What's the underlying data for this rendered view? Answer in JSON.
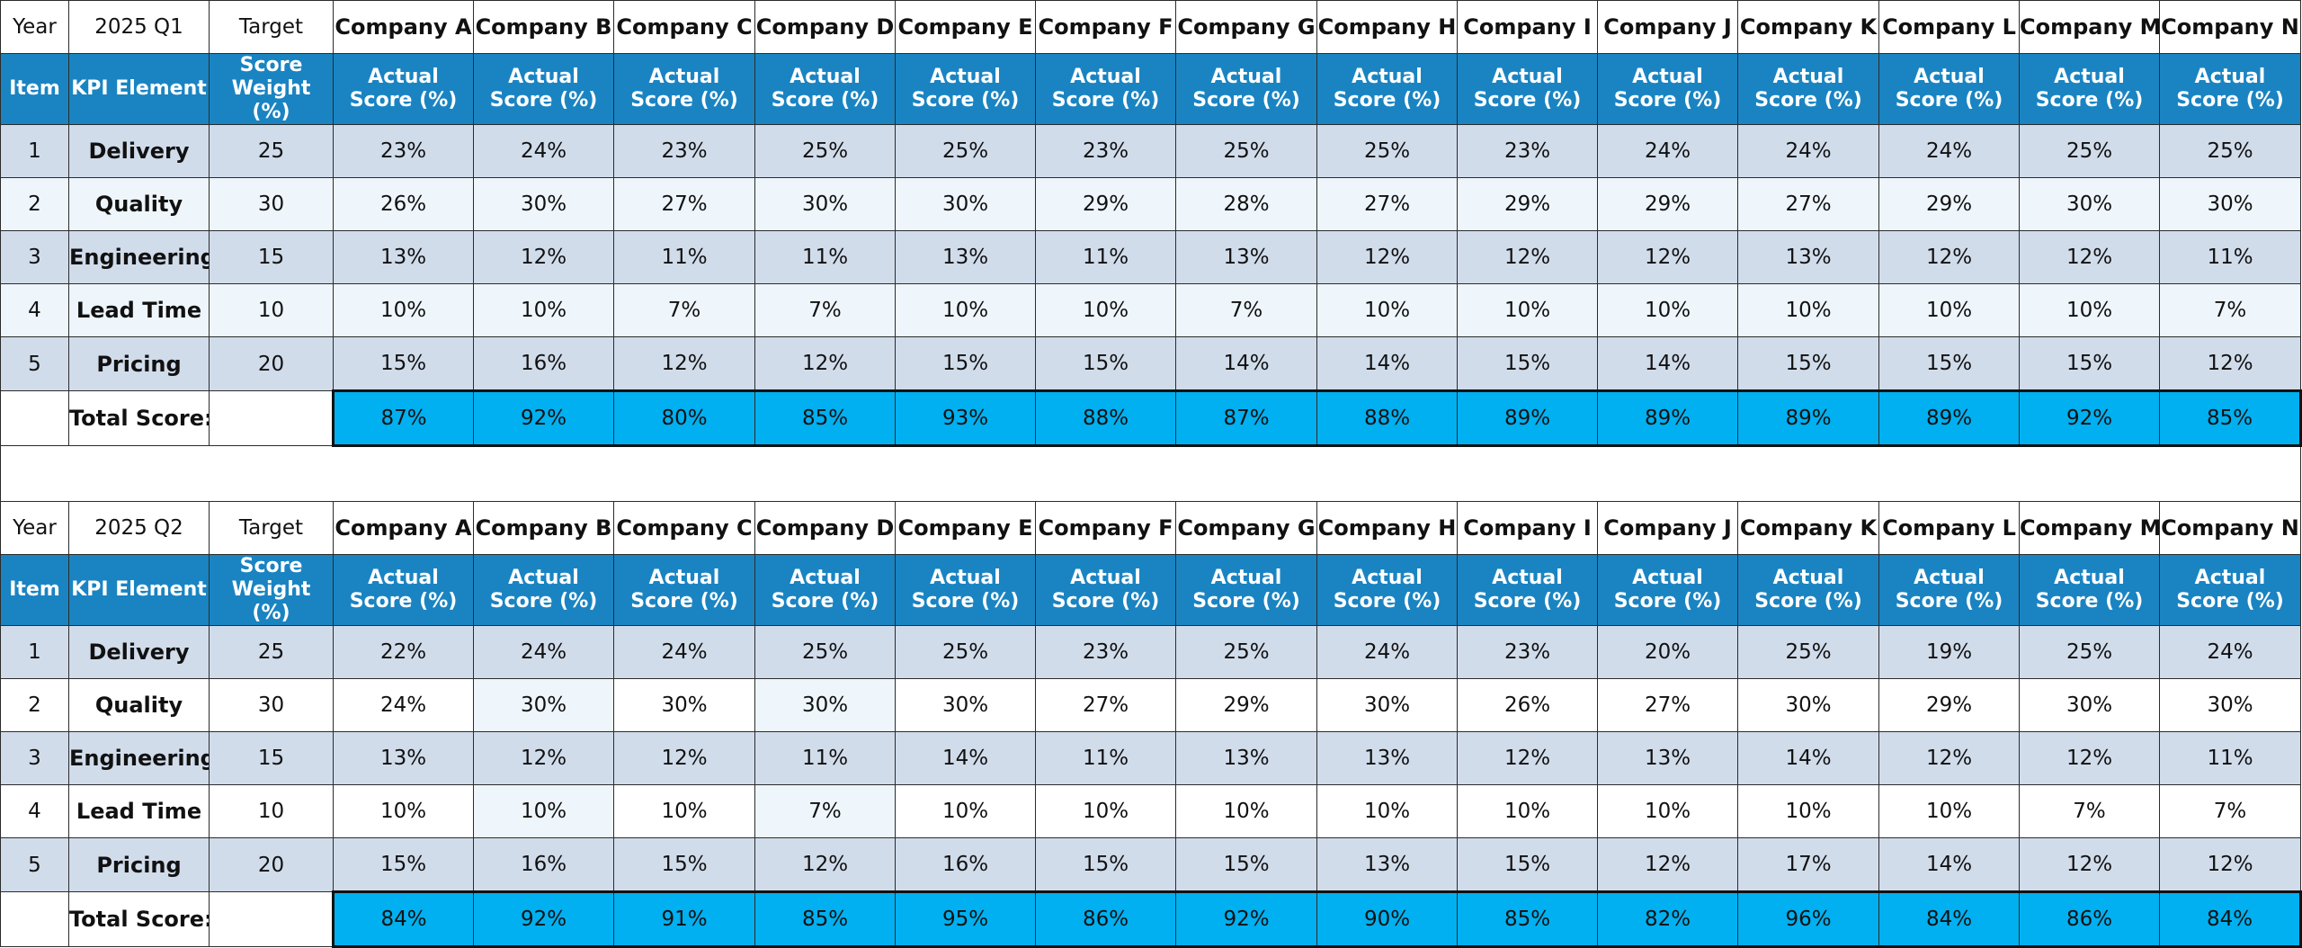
{
  "headers": {
    "year": "Year",
    "target": "Target",
    "item": "Item",
    "kpi_element": "KPI Element",
    "score_weight": "Score Weight (%)",
    "actual_score": "Actual Score (%)",
    "total_label": "Total Score:",
    "companies": [
      "Company A",
      "Company B",
      "Company C",
      "Company D",
      "Company E",
      "Company F",
      "Company G",
      "Company H",
      "Company I",
      "Company J",
      "Company K",
      "Company L",
      "Company M",
      "Company N"
    ]
  },
  "quarters": [
    {
      "period": "2025 Q1",
      "rows": [
        {
          "item": "1",
          "element": "Delivery",
          "weight": "25",
          "scores": [
            "23%",
            "24%",
            "23%",
            "25%",
            "25%",
            "23%",
            "25%",
            "25%",
            "23%",
            "24%",
            "24%",
            "24%",
            "25%",
            "25%"
          ]
        },
        {
          "item": "2",
          "element": "Quality",
          "weight": "30",
          "scores": [
            "26%",
            "30%",
            "27%",
            "30%",
            "30%",
            "29%",
            "28%",
            "27%",
            "29%",
            "29%",
            "27%",
            "29%",
            "30%",
            "30%"
          ]
        },
        {
          "item": "3",
          "element": "Engineering",
          "weight": "15",
          "scores": [
            "13%",
            "12%",
            "11%",
            "11%",
            "13%",
            "11%",
            "13%",
            "12%",
            "12%",
            "12%",
            "13%",
            "12%",
            "12%",
            "11%"
          ]
        },
        {
          "item": "4",
          "element": "Lead Time",
          "weight": "10",
          "scores": [
            "10%",
            "10%",
            "7%",
            "7%",
            "10%",
            "10%",
            "7%",
            "10%",
            "10%",
            "10%",
            "10%",
            "10%",
            "10%",
            "7%"
          ]
        },
        {
          "item": "5",
          "element": "Pricing",
          "weight": "20",
          "scores": [
            "15%",
            "16%",
            "12%",
            "12%",
            "15%",
            "15%",
            "14%",
            "14%",
            "15%",
            "14%",
            "15%",
            "15%",
            "15%",
            "12%"
          ]
        }
      ],
      "totals": [
        "87%",
        "92%",
        "80%",
        "85%",
        "93%",
        "88%",
        "87%",
        "88%",
        "89%",
        "89%",
        "89%",
        "89%",
        "92%",
        "85%"
      ]
    },
    {
      "period": "2025 Q2",
      "rows": [
        {
          "item": "1",
          "element": "Delivery",
          "weight": "25",
          "scores": [
            "22%",
            "24%",
            "24%",
            "25%",
            "25%",
            "23%",
            "25%",
            "24%",
            "23%",
            "20%",
            "25%",
            "19%",
            "25%",
            "24%"
          ]
        },
        {
          "item": "2",
          "element": "Quality",
          "weight": "30",
          "scores": [
            "24%",
            "30%",
            "30%",
            "30%",
            "30%",
            "27%",
            "29%",
            "30%",
            "26%",
            "27%",
            "30%",
            "29%",
            "30%",
            "30%"
          ]
        },
        {
          "item": "3",
          "element": "Engineering",
          "weight": "15",
          "scores": [
            "13%",
            "12%",
            "12%",
            "11%",
            "14%",
            "11%",
            "13%",
            "13%",
            "12%",
            "13%",
            "14%",
            "12%",
            "12%",
            "11%"
          ]
        },
        {
          "item": "4",
          "element": "Lead Time",
          "weight": "10",
          "scores": [
            "10%",
            "10%",
            "10%",
            "7%",
            "10%",
            "10%",
            "10%",
            "10%",
            "10%",
            "10%",
            "10%",
            "10%",
            "7%",
            "7%"
          ]
        },
        {
          "item": "5",
          "element": "Pricing",
          "weight": "20",
          "scores": [
            "15%",
            "16%",
            "15%",
            "12%",
            "16%",
            "15%",
            "15%",
            "13%",
            "15%",
            "12%",
            "17%",
            "14%",
            "12%",
            "12%"
          ]
        }
      ],
      "totals": [
        "84%",
        "92%",
        "91%",
        "85%",
        "95%",
        "86%",
        "92%",
        "90%",
        "85%",
        "82%",
        "96%",
        "84%",
        "86%",
        "84%"
      ]
    }
  ],
  "colors": {
    "header_blue": "#1a84c2",
    "total_cyan": "#00b0f0",
    "row_band": "#d1dceb",
    "row_light": "#eef6fc"
  }
}
